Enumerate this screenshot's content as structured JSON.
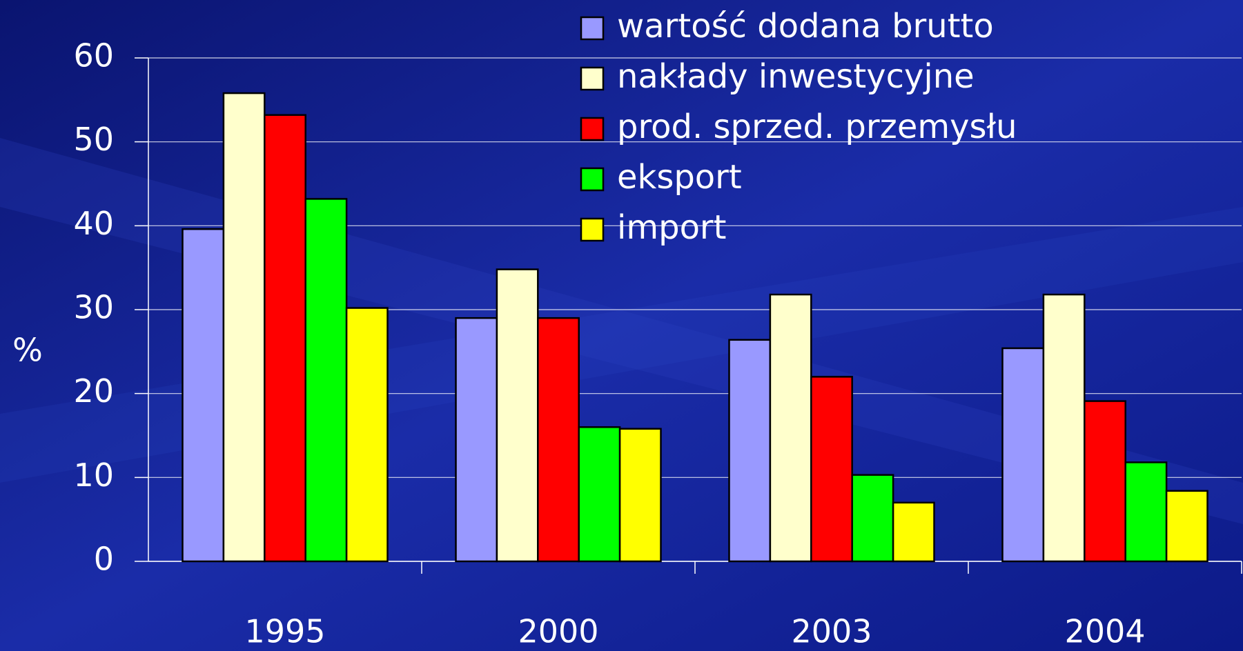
{
  "chart_data": {
    "type": "bar",
    "y_label": "%",
    "categories": [
      "1995",
      "2000",
      "2003",
      "2004"
    ],
    "series": [
      {
        "name": "wartość dodana brutto",
        "color": "#9999ff",
        "values": [
          39.6,
          29,
          26.4,
          25.4
        ]
      },
      {
        "name": "nakłady inwestycyjne",
        "color": "#ffffcc",
        "values": [
          55.8,
          34.8,
          31.8,
          31.8
        ]
      },
      {
        "name": "prod. sprzed. przemysłu",
        "color": "#ff0000",
        "values": [
          53.2,
          29,
          22,
          19.1
        ]
      },
      {
        "name": "eksport",
        "color": "#00ff00",
        "values": [
          43.2,
          16,
          10.3,
          11.8
        ]
      },
      {
        "name": "import",
        "color": "#ffff00",
        "values": [
          30.2,
          15.8,
          7,
          8.4
        ]
      }
    ],
    "ylim": [
      0,
      60
    ],
    "yticks": [
      0,
      10,
      20,
      30,
      40,
      50,
      60
    ],
    "grid": true,
    "legend": "top-right"
  }
}
